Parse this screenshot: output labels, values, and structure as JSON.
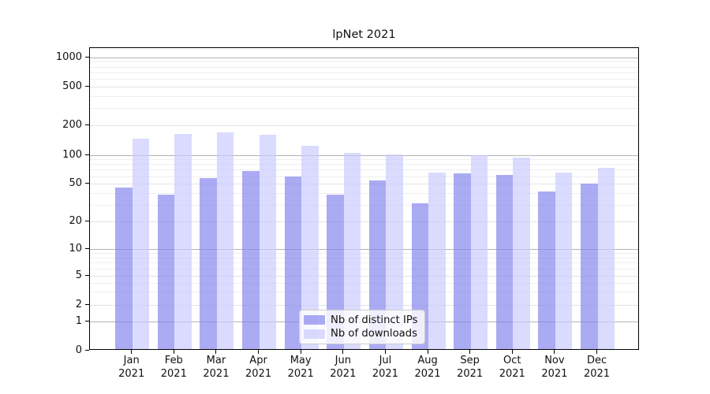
{
  "title": "lpNet 2021",
  "chart_data": {
    "type": "bar",
    "title": "lpNet 2021",
    "xlabel": "",
    "ylabel": "",
    "yscale": "symlog",
    "ylim": [
      0,
      1400
    ],
    "yticks": [
      0,
      1,
      2,
      5,
      10,
      20,
      50,
      100,
      200,
      500,
      1000
    ],
    "minor_gridlines": [
      3,
      4,
      6,
      7,
      8,
      9,
      30,
      40,
      60,
      70,
      80,
      90,
      300,
      400,
      600,
      700,
      800,
      900
    ],
    "grid": "on",
    "legend_position": "lower center",
    "categories": [
      "Jan\n2021",
      "Feb\n2021",
      "Mar\n2021",
      "Apr\n2021",
      "May\n2021",
      "Jun\n2021",
      "Jul\n2021",
      "Aug\n2021",
      "Sep\n2021",
      "Oct\n2021",
      "Nov\n2021",
      "Dec\n2021"
    ],
    "series": [
      {
        "name": "Nb of distinct IPs",
        "color": "rgba(136,136,238,0.7)",
        "values": [
          46,
          39,
          58,
          69,
          60,
          39,
          55,
          31,
          65,
          62,
          42,
          51
        ]
      },
      {
        "name": "Nb of downloads",
        "color": "rgba(204,204,255,0.7)",
        "values": [
          146,
          164,
          170,
          161,
          125,
          106,
          101,
          66,
          100,
          95,
          66,
          74
        ]
      }
    ],
    "colors": {
      "grid_major_power10": "#b3b3b3",
      "grid_major_other": "#e3e3e3",
      "grid_minor": "#efefef",
      "axis": "#000000",
      "background": "#ffffff"
    }
  }
}
